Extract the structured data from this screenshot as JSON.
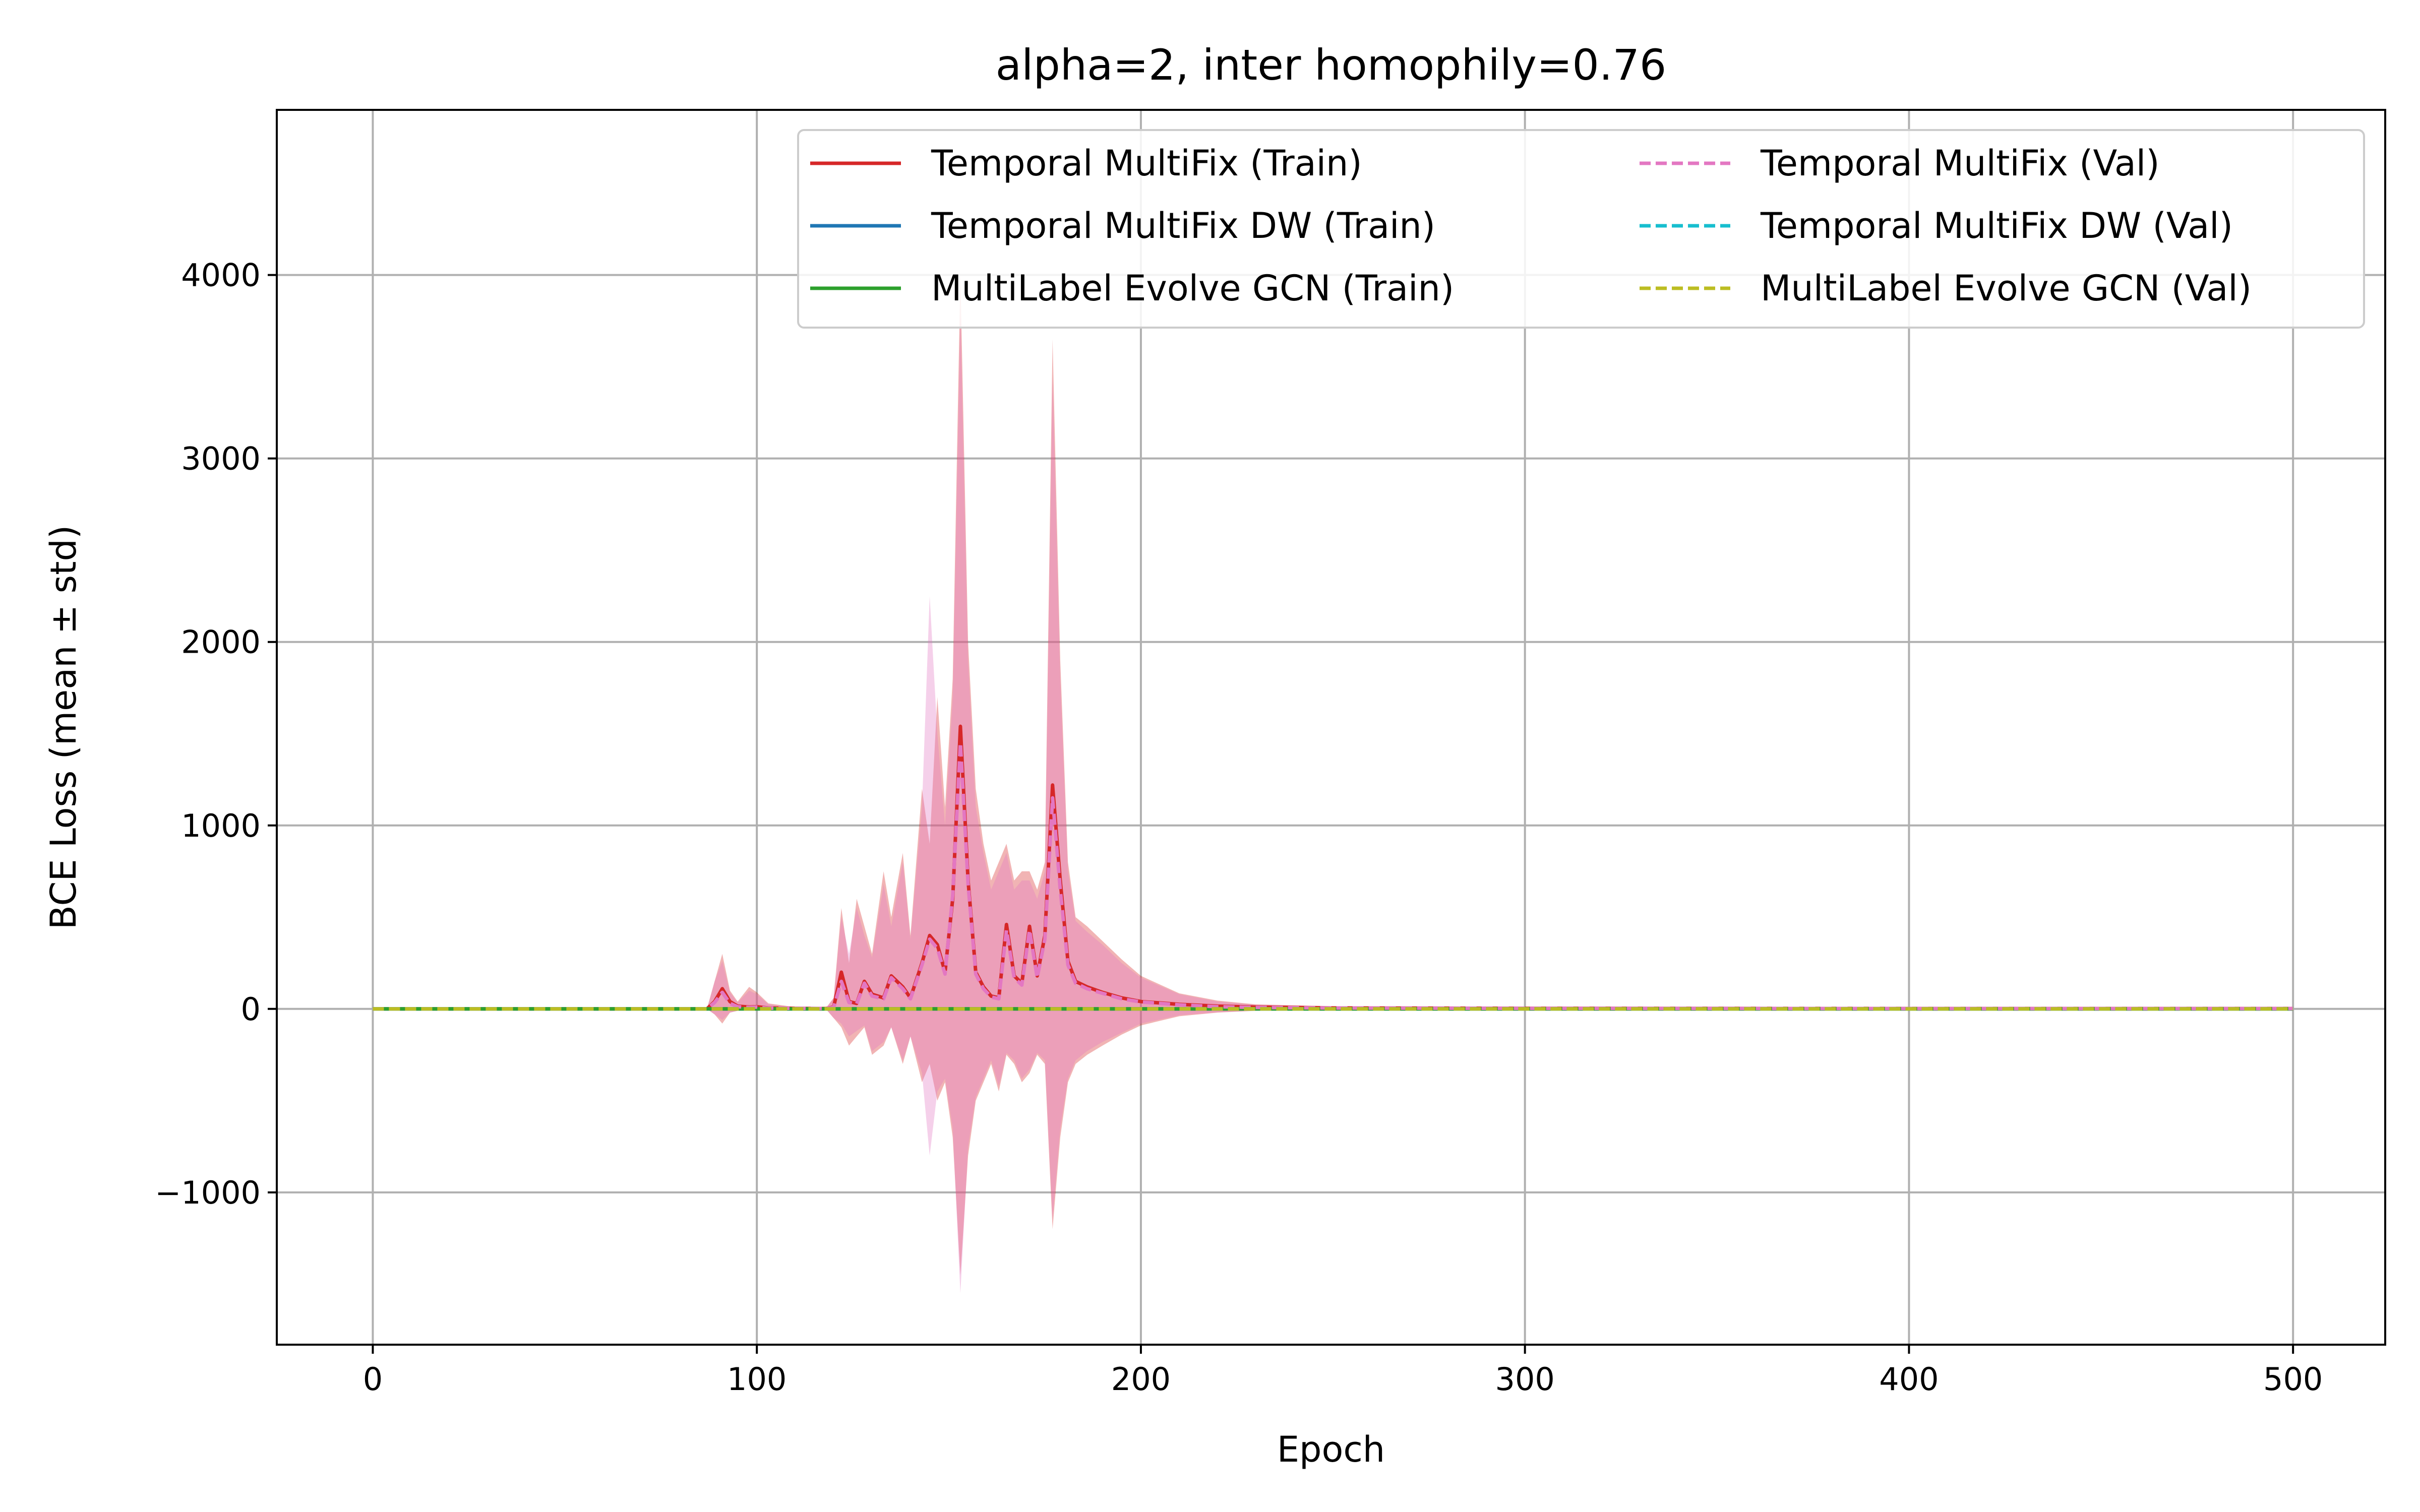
{
  "chart_data": {
    "type": "line",
    "title": "alpha=2, inter homophily=0.76",
    "xlabel": "Epoch",
    "ylabel": "BCE Loss (mean ± std)",
    "xlim": [
      -25,
      524
    ],
    "ylim": [
      -1830,
      4900
    ],
    "xticks": [
      0,
      100,
      200,
      300,
      400,
      500
    ],
    "yticks": [
      -1000,
      0,
      1000,
      2000,
      3000,
      4000
    ],
    "xtick_labels": [
      "0",
      "100",
      "200",
      "300",
      "400",
      "500"
    ],
    "ytick_labels": [
      "−1000",
      "0",
      "1000",
      "2000",
      "3000",
      "4000"
    ],
    "grid": true,
    "legend_position": "upper right",
    "legend_columns": 2,
    "series": [
      {
        "name": "Temporal MultiFix (Train)",
        "color": "#d62728",
        "style": "solid",
        "points": [
          [
            0,
            0
          ],
          [
            87,
            0
          ],
          [
            89,
            40
          ],
          [
            91,
            110
          ],
          [
            93,
            40
          ],
          [
            95,
            15
          ],
          [
            98,
            10
          ],
          [
            100,
            12
          ],
          [
            103,
            5
          ],
          [
            110,
            3
          ],
          [
            118,
            2
          ],
          [
            120,
            10
          ],
          [
            122,
            200
          ],
          [
            124,
            40
          ],
          [
            126,
            30
          ],
          [
            128,
            150
          ],
          [
            130,
            80
          ],
          [
            133,
            60
          ],
          [
            135,
            180
          ],
          [
            138,
            120
          ],
          [
            140,
            60
          ],
          [
            143,
            250
          ],
          [
            145,
            400
          ],
          [
            147,
            350
          ],
          [
            149,
            200
          ],
          [
            151,
            600
          ],
          [
            153,
            1540
          ],
          [
            155,
            700
          ],
          [
            157,
            200
          ],
          [
            159,
            120
          ],
          [
            161,
            70
          ],
          [
            163,
            60
          ],
          [
            165,
            460
          ],
          [
            167,
            180
          ],
          [
            169,
            140
          ],
          [
            171,
            450
          ],
          [
            173,
            180
          ],
          [
            175,
            400
          ],
          [
            177,
            1220
          ],
          [
            179,
            700
          ],
          [
            181,
            260
          ],
          [
            183,
            150
          ],
          [
            186,
            120
          ],
          [
            190,
            90
          ],
          [
            195,
            60
          ],
          [
            200,
            40
          ],
          [
            210,
            25
          ],
          [
            220,
            15
          ],
          [
            230,
            10
          ],
          [
            250,
            5
          ],
          [
            300,
            3
          ],
          [
            400,
            2
          ],
          [
            500,
            2
          ]
        ],
        "band": [
          [
            0,
            0,
            0
          ],
          [
            87,
            0,
            0
          ],
          [
            89,
            -30,
            150
          ],
          [
            91,
            -80,
            300
          ],
          [
            93,
            -20,
            100
          ],
          [
            95,
            -10,
            40
          ],
          [
            98,
            -5,
            120
          ],
          [
            100,
            -10,
            90
          ],
          [
            103,
            -2,
            30
          ],
          [
            110,
            -2,
            10
          ],
          [
            118,
            -1,
            5
          ],
          [
            120,
            -50,
            60
          ],
          [
            122,
            -100,
            550
          ],
          [
            124,
            -200,
            250
          ],
          [
            126,
            -150,
            600
          ],
          [
            128,
            -100,
            450
          ],
          [
            130,
            -250,
            300
          ],
          [
            133,
            -200,
            750
          ],
          [
            135,
            -100,
            500
          ],
          [
            138,
            -300,
            850
          ],
          [
            140,
            -150,
            400
          ],
          [
            143,
            -400,
            1200
          ],
          [
            145,
            -300,
            900
          ],
          [
            147,
            -500,
            1700
          ],
          [
            149,
            -400,
            1100
          ],
          [
            151,
            -700,
            1800
          ],
          [
            153,
            -1450,
            4000
          ],
          [
            155,
            -800,
            2000
          ],
          [
            157,
            -500,
            1200
          ],
          [
            159,
            -400,
            900
          ],
          [
            161,
            -300,
            700
          ],
          [
            163,
            -450,
            800
          ],
          [
            165,
            -250,
            900
          ],
          [
            167,
            -300,
            700
          ],
          [
            169,
            -400,
            750
          ],
          [
            171,
            -350,
            750
          ],
          [
            173,
            -250,
            650
          ],
          [
            175,
            -300,
            800
          ],
          [
            177,
            -1200,
            3650
          ],
          [
            179,
            -700,
            1900
          ],
          [
            181,
            -400,
            800
          ],
          [
            183,
            -300,
            500
          ],
          [
            186,
            -250,
            450
          ],
          [
            190,
            -200,
            370
          ],
          [
            195,
            -140,
            270
          ],
          [
            200,
            -90,
            180
          ],
          [
            210,
            -40,
            85
          ],
          [
            220,
            -20,
            45
          ],
          [
            230,
            -10,
            25
          ],
          [
            250,
            -5,
            15
          ],
          [
            300,
            -3,
            8
          ],
          [
            400,
            -2,
            5
          ],
          [
            500,
            -2,
            5
          ]
        ]
      },
      {
        "name": "Temporal MultiFix DW (Train)",
        "color": "#1f77b4",
        "style": "solid",
        "points": [
          [
            0,
            0
          ],
          [
            500,
            0
          ]
        ]
      },
      {
        "name": "MultiLabel Evolve GCN (Train)",
        "color": "#2ca02c",
        "style": "solid",
        "points": [
          [
            0,
            0
          ],
          [
            500,
            0
          ]
        ]
      },
      {
        "name": "Temporal MultiFix (Val)",
        "color": "#e377c2",
        "style": "dashed",
        "points": [
          [
            0,
            0
          ],
          [
            87,
            0
          ],
          [
            89,
            35
          ],
          [
            91,
            90
          ],
          [
            93,
            30
          ],
          [
            95,
            12
          ],
          [
            98,
            8
          ],
          [
            100,
            10
          ],
          [
            103,
            4
          ],
          [
            110,
            3
          ],
          [
            118,
            2
          ],
          [
            120,
            8
          ],
          [
            122,
            150
          ],
          [
            124,
            35
          ],
          [
            126,
            28
          ],
          [
            128,
            140
          ],
          [
            130,
            70
          ],
          [
            133,
            55
          ],
          [
            135,
            170
          ],
          [
            138,
            110
          ],
          [
            140,
            55
          ],
          [
            143,
            240
          ],
          [
            145,
            380
          ],
          [
            147,
            330
          ],
          [
            149,
            190
          ],
          [
            151,
            620
          ],
          [
            153,
            1450
          ],
          [
            155,
            680
          ],
          [
            157,
            190
          ],
          [
            159,
            110
          ],
          [
            161,
            65
          ],
          [
            163,
            55
          ],
          [
            165,
            430
          ],
          [
            167,
            170
          ],
          [
            169,
            130
          ],
          [
            171,
            430
          ],
          [
            173,
            170
          ],
          [
            175,
            380
          ],
          [
            177,
            1150
          ],
          [
            179,
            650
          ],
          [
            181,
            240
          ],
          [
            183,
            140
          ],
          [
            186,
            110
          ],
          [
            190,
            85
          ],
          [
            195,
            55
          ],
          [
            200,
            38
          ],
          [
            210,
            22
          ],
          [
            220,
            12
          ],
          [
            230,
            8
          ],
          [
            250,
            5
          ],
          [
            300,
            3
          ],
          [
            400,
            2
          ],
          [
            500,
            2
          ]
        ],
        "band": [
          [
            0,
            0,
            0
          ],
          [
            87,
            0,
            0
          ],
          [
            89,
            -30,
            150
          ],
          [
            91,
            -60,
            260
          ],
          [
            93,
            -20,
            90
          ],
          [
            95,
            -10,
            35
          ],
          [
            98,
            -5,
            100
          ],
          [
            100,
            -8,
            80
          ],
          [
            103,
            -2,
            25
          ],
          [
            110,
            -2,
            8
          ],
          [
            118,
            -1,
            5
          ],
          [
            120,
            -50,
            60
          ],
          [
            122,
            -80,
            500
          ],
          [
            124,
            -150,
            300
          ],
          [
            126,
            -120,
            550
          ],
          [
            128,
            -90,
            400
          ],
          [
            130,
            -230,
            280
          ],
          [
            133,
            -180,
            680
          ],
          [
            135,
            -100,
            450
          ],
          [
            138,
            -280,
            800
          ],
          [
            140,
            -150,
            380
          ],
          [
            143,
            -350,
            1100
          ],
          [
            145,
            -800,
            2250
          ],
          [
            147,
            -450,
            1500
          ],
          [
            149,
            -380,
            1000
          ],
          [
            151,
            -650,
            1700
          ],
          [
            153,
            -1550,
            3800
          ],
          [
            155,
            -750,
            1900
          ],
          [
            157,
            -480,
            1100
          ],
          [
            159,
            -380,
            850
          ],
          [
            161,
            -280,
            650
          ],
          [
            163,
            -420,
            750
          ],
          [
            165,
            -240,
            850
          ],
          [
            167,
            -280,
            650
          ],
          [
            169,
            -380,
            700
          ],
          [
            171,
            -330,
            700
          ],
          [
            173,
            -240,
            600
          ],
          [
            175,
            -280,
            750
          ],
          [
            177,
            -1150,
            3450
          ],
          [
            179,
            -650,
            1800
          ],
          [
            181,
            -380,
            750
          ],
          [
            183,
            -280,
            480
          ],
          [
            186,
            -230,
            420
          ],
          [
            190,
            -180,
            350
          ],
          [
            195,
            -130,
            250
          ],
          [
            200,
            -80,
            170
          ],
          [
            210,
            -35,
            80
          ],
          [
            220,
            -18,
            40
          ],
          [
            230,
            -9,
            22
          ],
          [
            250,
            -5,
            13
          ],
          [
            300,
            -3,
            7
          ],
          [
            400,
            -2,
            5
          ],
          [
            500,
            -2,
            5
          ]
        ]
      },
      {
        "name": "Temporal MultiFix DW (Val)",
        "color": "#17becf",
        "style": "dashed",
        "points": [
          [
            0,
            0
          ],
          [
            500,
            0
          ]
        ]
      },
      {
        "name": "MultiLabel Evolve GCN (Val)",
        "color": "#bcbd22",
        "style": "dashed",
        "points": [
          [
            0,
            0
          ],
          [
            500,
            0
          ]
        ]
      }
    ]
  }
}
